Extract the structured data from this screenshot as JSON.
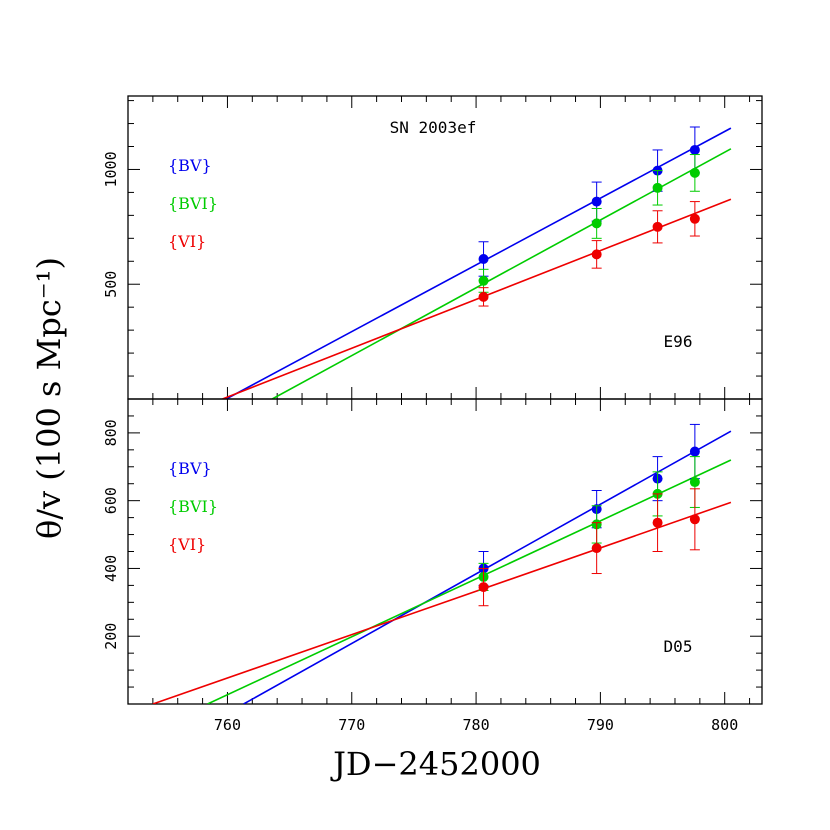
{
  "chart_data": {
    "type": "scatter",
    "xlabel": "JD−2452000",
    "ylabel": "θ/v (100 s Mpc⁻¹)",
    "xlim": [
      752,
      803
    ],
    "xticks": [
      "760",
      "770",
      "780",
      "790",
      "800"
    ],
    "colors": {
      "BV": "#0000ee",
      "BVI": "#00cc00",
      "VI": "#ee0000"
    },
    "panels": [
      {
        "id": "E96",
        "title": "SN 2003ef",
        "label": "E96",
        "ylim": [
          0,
          1320
        ],
        "yticks": [
          "500",
          "1000"
        ],
        "yticks_values": [
          500,
          1000
        ],
        "legend": [
          "{BV}",
          "{BVI}",
          "{VI}"
        ],
        "series": [
          {
            "name": "{BV}",
            "color": "#0000ee",
            "x": [
              780.6,
              789.7,
              794.6,
              797.6
            ],
            "y": [
              610,
              860,
              995,
              1085
            ],
            "yerr": [
              75,
              85,
              90,
              100
            ],
            "fit": [
              [
                759.9,
                0
              ],
              [
                800.5,
                1180
              ]
            ]
          },
          {
            "name": "{BVI}",
            "color": "#00cc00",
            "x": [
              780.6,
              789.7,
              794.6,
              797.6
            ],
            "y": [
              515,
              765,
              920,
              985
            ],
            "yerr": [
              50,
              65,
              75,
              80
            ],
            "fit": [
              [
                763.6,
                0
              ],
              [
                800.5,
                1090
              ]
            ]
          },
          {
            "name": "{VI}",
            "color": "#ee0000",
            "x": [
              780.6,
              789.7,
              794.6,
              797.6
            ],
            "y": [
              445,
              630,
              750,
              785
            ],
            "yerr": [
              40,
              60,
              70,
              75
            ],
            "fit": [
              [
                759.6,
                0
              ],
              [
                800.5,
                870
              ]
            ]
          }
        ]
      },
      {
        "id": "D05",
        "title": "",
        "label": "D05",
        "ylim": [
          0,
          900
        ],
        "yticks": [
          "200",
          "400",
          "600",
          "800"
        ],
        "yticks_values": [
          200,
          400,
          600,
          800
        ],
        "legend": [
          "{BV}",
          "{BVI}",
          "{VI}"
        ],
        "series": [
          {
            "name": "{BV}",
            "color": "#0000ee",
            "x": [
              780.6,
              789.7,
              794.6,
              797.6
            ],
            "y": [
              400,
              575,
              665,
              745
            ],
            "yerr": [
              50,
              55,
              65,
              80
            ],
            "fit": [
              [
                761.3,
                0
              ],
              [
                800.5,
                805
              ]
            ]
          },
          {
            "name": "{BVI}",
            "color": "#00cc00",
            "x": [
              780.6,
              789.7,
              794.6,
              797.6
            ],
            "y": [
              375,
              530,
              620,
              655
            ],
            "yerr": [
              40,
              55,
              65,
              75
            ],
            "fit": [
              [
                758.4,
                0
              ],
              [
                800.5,
                720
              ]
            ]
          },
          {
            "name": "{VI}",
            "color": "#ee0000",
            "x": [
              780.6,
              789.7,
              794.6,
              797.6
            ],
            "y": [
              345,
              460,
              535,
              545
            ],
            "yerr": [
              55,
              75,
              85,
              90
            ],
            "fit": [
              [
                754.0,
                0
              ],
              [
                800.5,
                595
              ]
            ]
          }
        ]
      }
    ]
  }
}
